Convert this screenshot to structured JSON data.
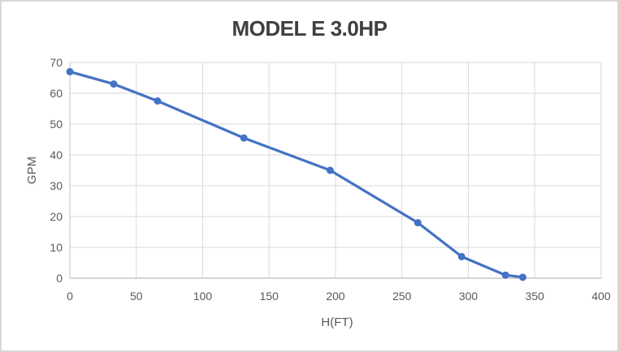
{
  "chart_data": {
    "type": "line",
    "title": "MODEL E 3.0HP",
    "xlabel": "H(FT)",
    "ylabel": "GPM",
    "xlim": [
      0,
      400
    ],
    "ylim": [
      0,
      70
    ],
    "xticks": [
      0,
      50,
      100,
      150,
      200,
      250,
      300,
      350,
      400
    ],
    "yticks": [
      0,
      10,
      20,
      30,
      40,
      50,
      60,
      70
    ],
    "grid": true,
    "legend": false,
    "series": [
      {
        "name": "MODEL E 3.0HP",
        "x": [
          0,
          33,
          66,
          131,
          196,
          262,
          295,
          328,
          341
        ],
        "y": [
          67,
          63,
          57.5,
          45.5,
          35,
          18,
          7,
          1,
          0.3
        ],
        "color": "#4472c4",
        "marker": "circle"
      }
    ],
    "colors": {
      "series_line": "#4472c4",
      "marker_fill": "#4472c4",
      "gridline": "#d9d9d9",
      "axis_line": "#c6c6c6",
      "tick_label": "#595959",
      "axis_title": "#595959",
      "title": "#3f3f3f",
      "background": "#ffffff",
      "border": "#d9d9d9"
    }
  }
}
